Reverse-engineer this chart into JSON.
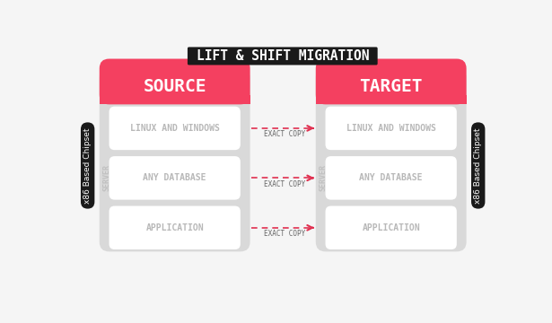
{
  "title": "LIFT & SHIFT MIGRATION",
  "title_bg": "#1a1a1a",
  "title_color": "#ffffff",
  "source_label": "SOURCE",
  "target_label": "TARGET",
  "header_color": "#f44060",
  "panel_bg": "#d9d9d9",
  "box_bg": "#ffffff",
  "box_label_color": "#b8b8b8",
  "box_labels": [
    "APPLICATION",
    "ANY DATABASE",
    "LINUX AND WINDOWS"
  ],
  "arrow_color": "#e03050",
  "arrow_label": "EXACT COPY",
  "arrow_label_color": "#666666",
  "server_label_color": "#c0c0c0",
  "server_label": "SERVER",
  "chipset_label": "x86 Based Chipset",
  "chipset_bg": "#1a1a1a",
  "chipset_color": "#ffffff",
  "bg_color": "#f5f5f5"
}
